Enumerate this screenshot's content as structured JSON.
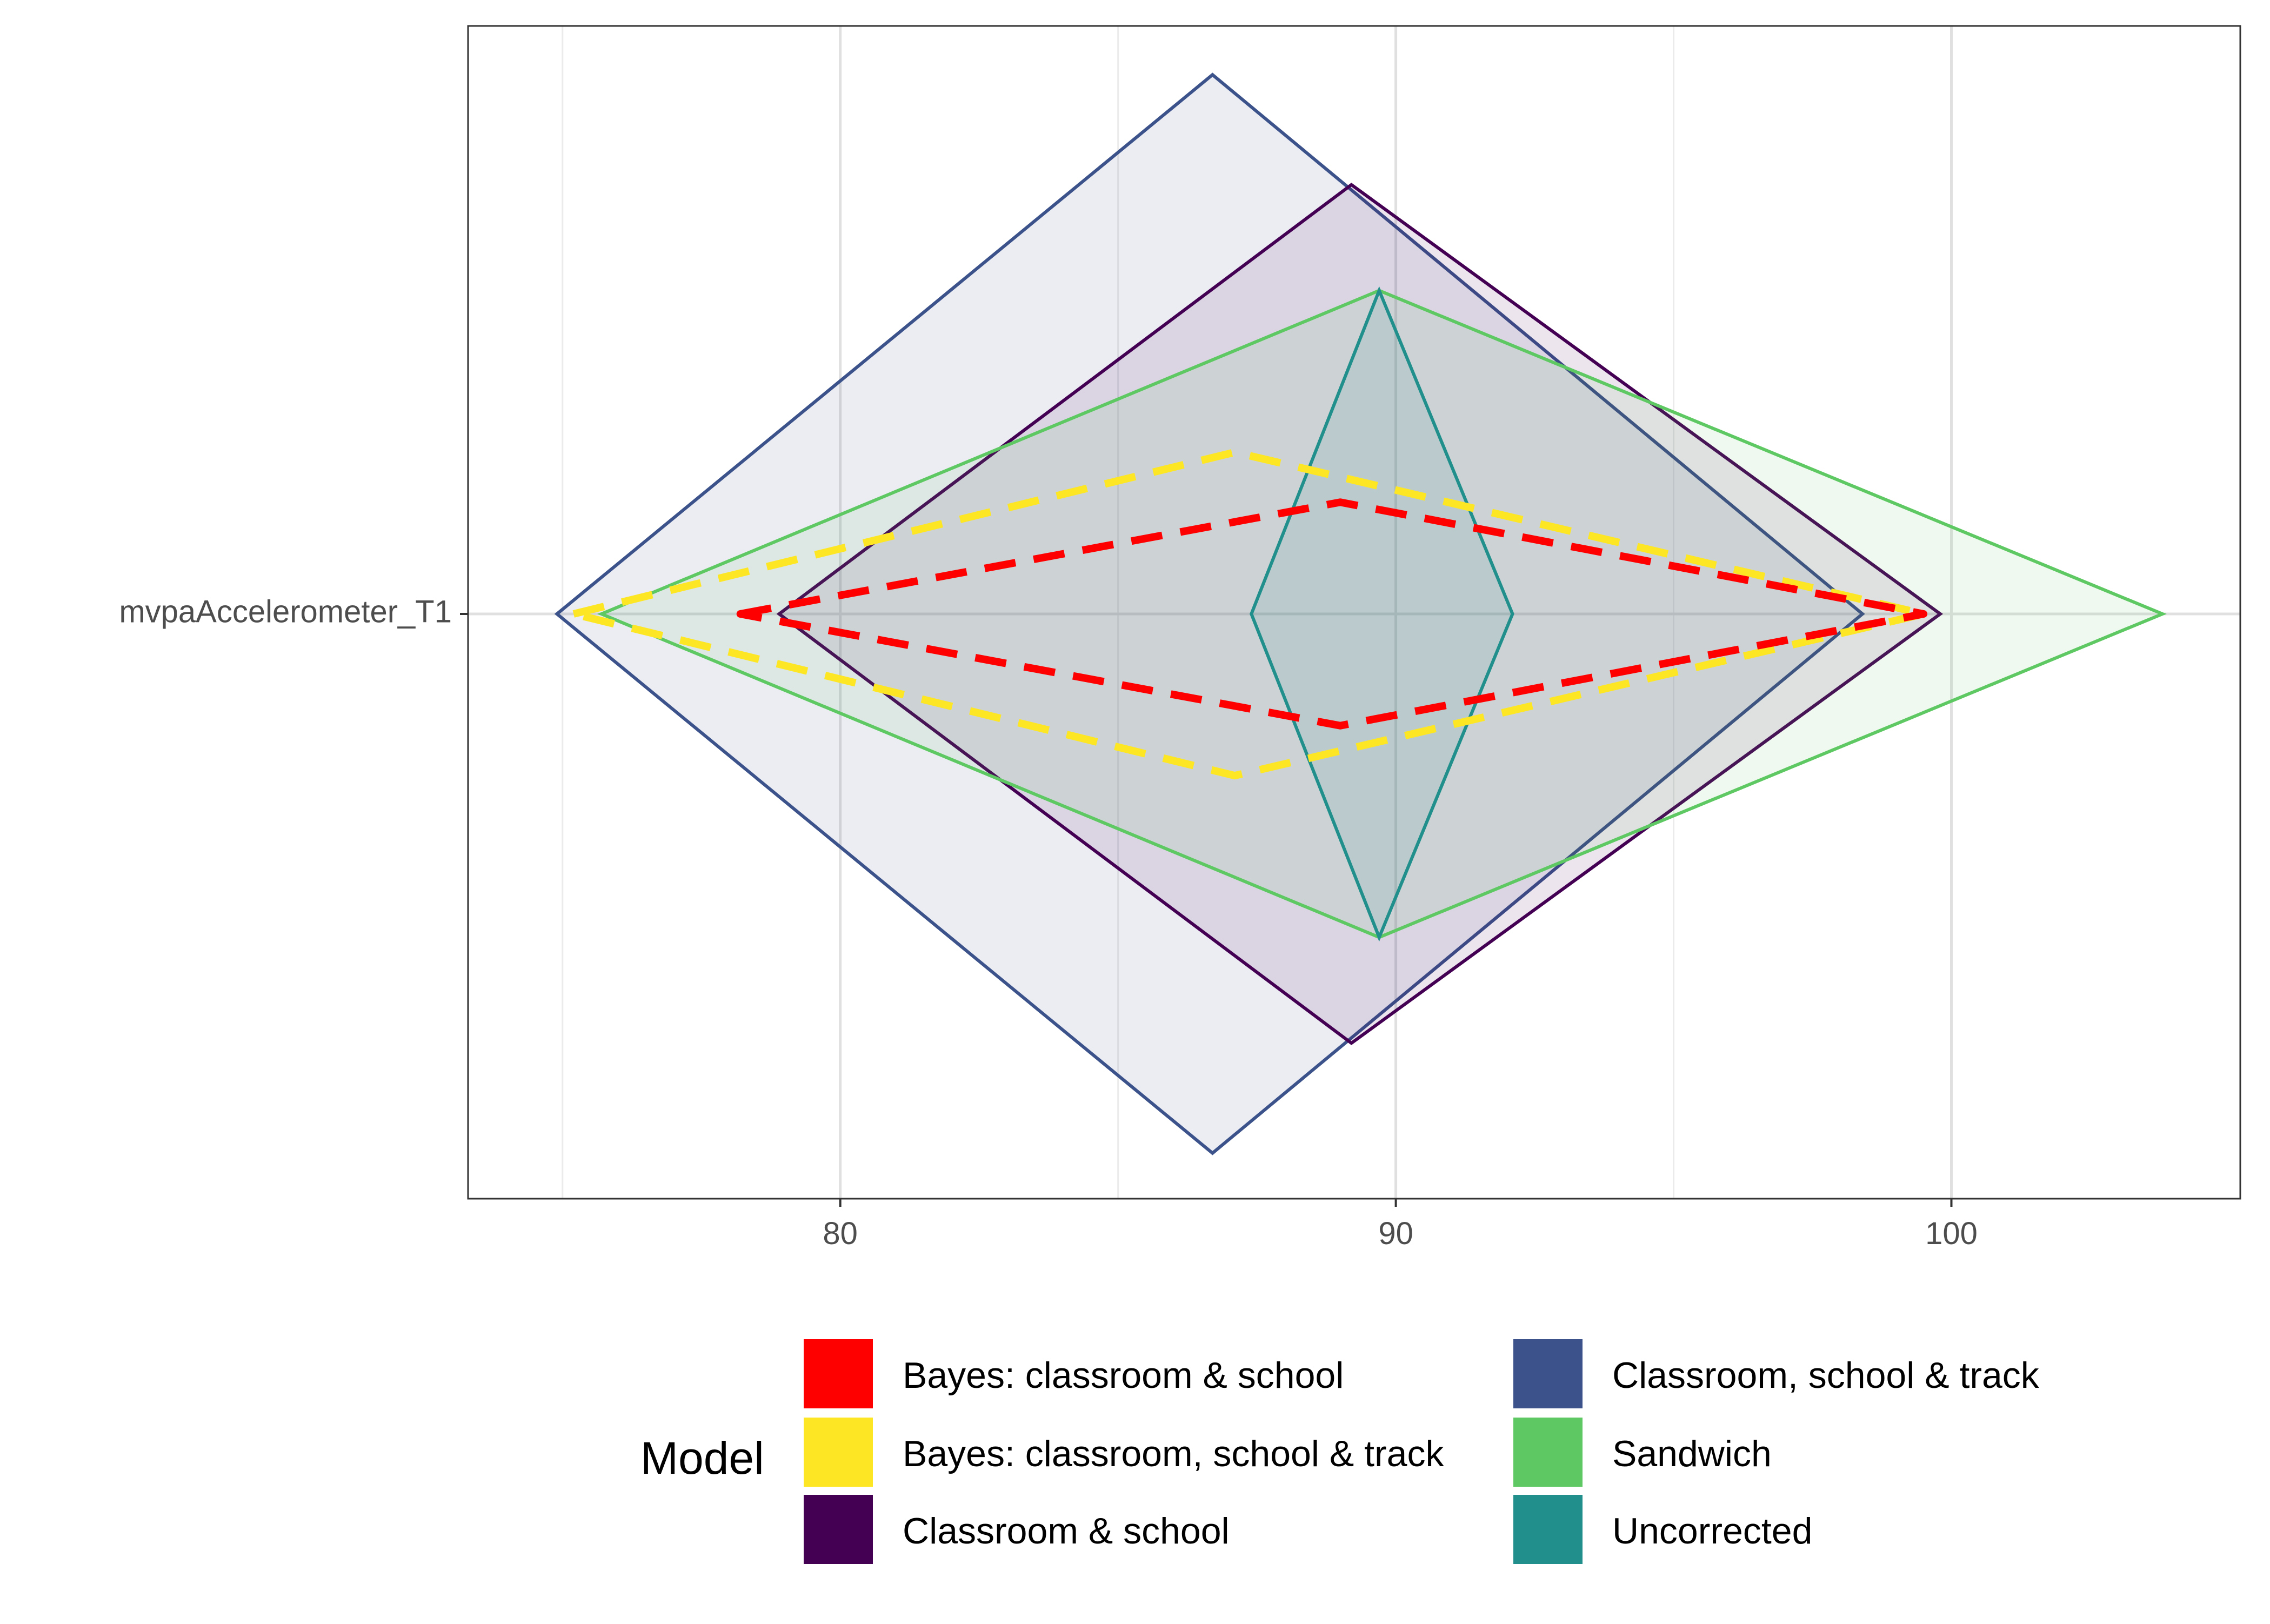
{
  "chart_data": {
    "type": "diamond-interval",
    "y_category": "mvpaAccelerometer_T1",
    "xlim": [
      73.3,
      105.2
    ],
    "x_ticks": [
      80,
      90,
      100
    ],
    "x_minor_gridlines": [
      75,
      85,
      95
    ],
    "grid": true,
    "legend": {
      "title": "Model",
      "placement": "bottom",
      "columns": 2
    },
    "series": [
      {
        "name": "Classroom, school & track",
        "color": "#3B528B",
        "style": "solid-filled",
        "point": [
          {
            "x": 74.9,
            "y": 0
          },
          {
            "x": 86.7,
            "y": 0.917
          },
          {
            "x": 98.4,
            "y": 0
          },
          {
            "x": 86.7,
            "y": -0.917
          }
        ]
      },
      {
        "name": "Classroom & school",
        "color": "#440154",
        "style": "solid-filled",
        "point": [
          {
            "x": 78.9,
            "y": 0
          },
          {
            "x": 89.2,
            "y": 0.73
          },
          {
            "x": 99.8,
            "y": 0
          },
          {
            "x": 89.2,
            "y": -0.73
          }
        ]
      },
      {
        "name": "Sandwich",
        "color": "#5EC962",
        "style": "solid-filled",
        "point": [
          {
            "x": 75.7,
            "y": 0
          },
          {
            "x": 89.7,
            "y": 0.55
          },
          {
            "x": 103.8,
            "y": 0
          },
          {
            "x": 89.7,
            "y": -0.55
          }
        ]
      },
      {
        "name": "Uncorrected",
        "color": "#21908C",
        "style": "solid-filled",
        "point": [
          {
            "x": 87.4,
            "y": 0
          },
          {
            "x": 89.7,
            "y": 0.55
          },
          {
            "x": 92.1,
            "y": 0
          },
          {
            "x": 89.7,
            "y": -0.55
          }
        ]
      },
      {
        "name": "Bayes: classroom, school & track",
        "color": "#FDE725",
        "style": "dashed",
        "point": [
          {
            "x": 75.2,
            "y": 0
          },
          {
            "x": 87.1,
            "y": 0.275
          },
          {
            "x": 99.5,
            "y": 0
          },
          {
            "x": 87.1,
            "y": -0.275
          }
        ]
      },
      {
        "name": "Bayes: classroom & school",
        "color": "#FF0000",
        "style": "dashed",
        "point": [
          {
            "x": 78.2,
            "y": 0
          },
          {
            "x": 89.0,
            "y": 0.19
          },
          {
            "x": 99.5,
            "y": 0
          },
          {
            "x": 89.0,
            "y": -0.19
          }
        ]
      }
    ],
    "legend_order": [
      "Bayes: classroom & school",
      "Bayes: classroom, school & track",
      "Classroom & school",
      "Classroom, school & track",
      "Sandwich",
      "Uncorrected"
    ]
  }
}
